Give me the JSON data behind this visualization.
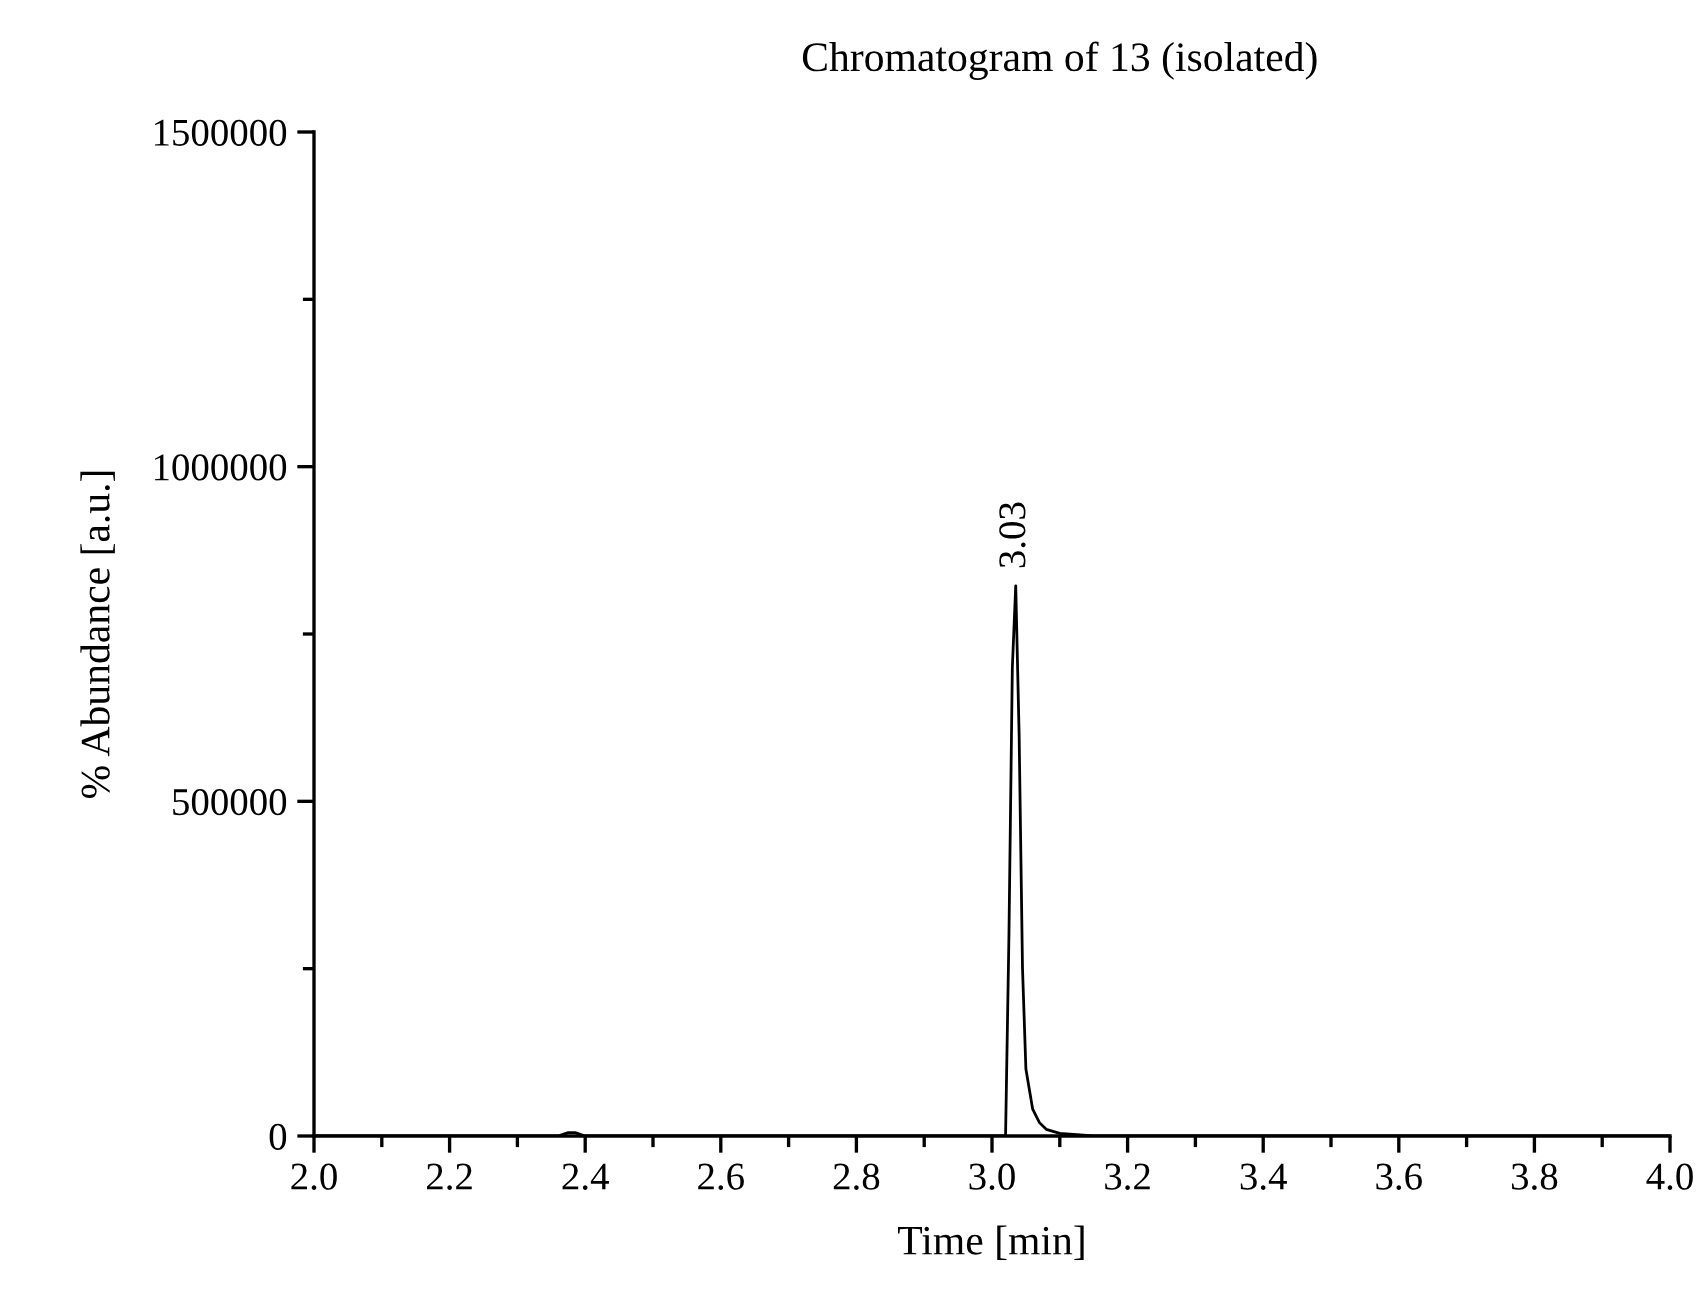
{
  "chart_data": {
    "type": "line",
    "title": "Chromatogram of 13 (isolated)",
    "xlabel": "Time [min]",
    "ylabel": "% Abundance [a.u.]",
    "x": [
      2.0,
      2.36,
      2.375,
      2.385,
      2.4,
      3.0,
      3.02,
      3.025,
      3.03,
      3.035,
      3.04,
      3.045,
      3.05,
      3.06,
      3.07,
      3.08,
      3.1,
      3.15,
      3.2,
      4.0
    ],
    "series": [
      {
        "color": "#000000",
        "values": [
          0,
          0,
          5000,
          5000,
          0,
          0,
          0,
          300000,
          700000,
          822000,
          600000,
          250000,
          100000,
          40000,
          20000,
          10000,
          4000,
          0,
          0,
          0
        ]
      }
    ],
    "annotations": [
      {
        "text": "3.03",
        "x": 3.035,
        "y": 822000
      }
    ],
    "xlim": [
      2.0,
      4.0
    ],
    "xticks": [
      {
        "value": 2,
        "label": "2.0"
      },
      2.2,
      2.4,
      2.6,
      2.8,
      {
        "value": 3,
        "label": "3.0"
      },
      3.2,
      3.4,
      3.6,
      3.8,
      {
        "value": 4,
        "label": "4.0"
      }
    ],
    "ylim": [
      0,
      1500000
    ],
    "yticks": [
      0,
      500000,
      1000000,
      1500000
    ],
    "grid": false,
    "legend": false,
    "marker": "none",
    "line_style": "solid"
  }
}
